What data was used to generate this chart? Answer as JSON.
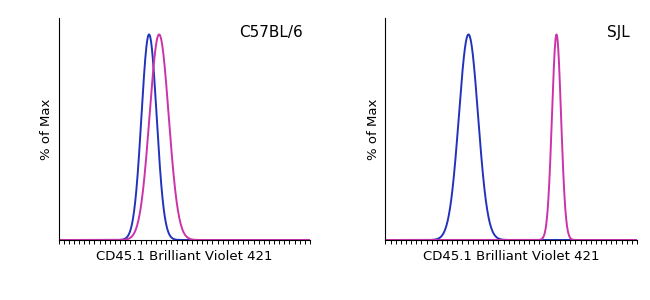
{
  "panel1_label": "C57BL/6",
  "panel2_label": "SJL",
  "xlabel": "CD45.1 Brilliant Violet 421",
  "ylabel": "% of Max",
  "blue_color": "#2233BB",
  "pink_color": "#CC33AA",
  "background_color": "#ffffff",
  "panel1": {
    "blue_peak": 0.36,
    "blue_std": 0.03,
    "pink_peak": 0.4,
    "pink_std": 0.038
  },
  "panel2": {
    "blue_peak": 0.33,
    "blue_std": 0.038,
    "pink_peak": 0.68,
    "pink_std": 0.018
  },
  "xlim": [
    0,
    1
  ],
  "ylim": [
    0,
    1.08
  ],
  "label_fontsize": 9.5,
  "annotation_fontsize": 11,
  "line_width": 1.4,
  "n_ticks": 50
}
